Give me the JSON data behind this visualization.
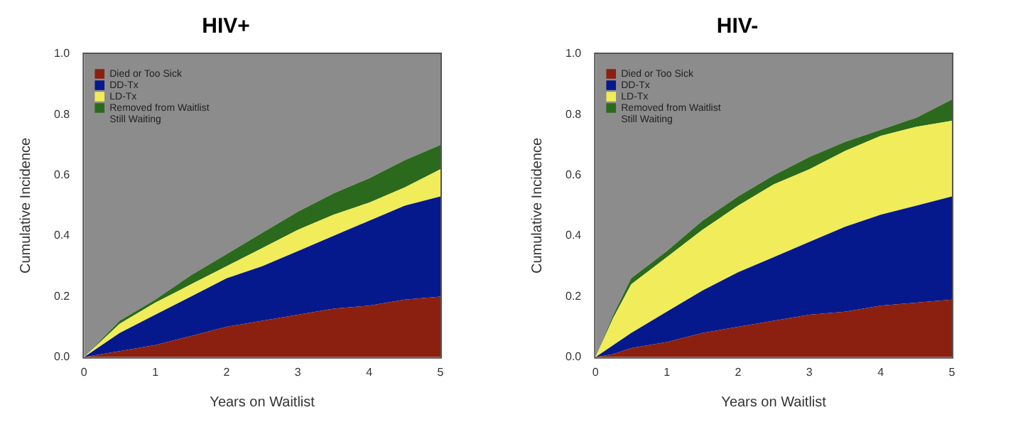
{
  "chart_data": [
    {
      "type": "area",
      "title": "HIV+",
      "xlabel": "Years on Waitlist",
      "ylabel": "Cumulative Incidence",
      "stacked": true,
      "legend": "top left",
      "x": [
        0,
        0.5,
        1,
        1.5,
        2,
        2.5,
        3,
        3.5,
        4,
        4.5,
        5
      ],
      "series": [
        {
          "name": "Died or Too Sick",
          "color": "#8b2010",
          "values": [
            0,
            0.02,
            0.04,
            0.07,
            0.1,
            0.12,
            0.14,
            0.16,
            0.17,
            0.19,
            0.2
          ]
        },
        {
          "name": "DD-Tx",
          "color": "#06198c",
          "values": [
            0,
            0.06,
            0.1,
            0.13,
            0.16,
            0.18,
            0.21,
            0.24,
            0.28,
            0.31,
            0.33
          ]
        },
        {
          "name": "LD-Tx",
          "color": "#f0ec5a",
          "values": [
            0,
            0.03,
            0.04,
            0.04,
            0.04,
            0.06,
            0.07,
            0.07,
            0.06,
            0.06,
            0.09
          ]
        },
        {
          "name": "Removed from Waitlist",
          "color": "#2b6a1c",
          "values": [
            0,
            0.01,
            0.01,
            0.03,
            0.04,
            0.05,
            0.06,
            0.07,
            0.08,
            0.09,
            0.08
          ]
        },
        {
          "name": "Still Waiting",
          "color": "#8c8c8c",
          "values": [
            1,
            0.88,
            0.81,
            0.73,
            0.66,
            0.59,
            0.52,
            0.46,
            0.41,
            0.35,
            0.3
          ]
        }
      ],
      "xlim": [
        0,
        5
      ],
      "xticks": [
        0,
        1,
        2,
        3,
        4,
        5
      ],
      "ylim": [
        0,
        1
      ],
      "yticks": [
        {
          "value": 0,
          "label": "0.0"
        },
        {
          "value": 0.2,
          "label": "0.2"
        },
        {
          "value": 0.4,
          "label": "0.4"
        },
        {
          "value": 0.6,
          "label": "0.6"
        },
        {
          "value": 0.8,
          "label": "0.8"
        },
        {
          "value": 1,
          "label": "1.0"
        }
      ]
    },
    {
      "type": "area",
      "title": "HIV-",
      "xlabel": "Years on Waitlist",
      "ylabel": "Cumulative Incidence",
      "stacked": true,
      "legend": "top left",
      "x": [
        0,
        0.25,
        0.5,
        1,
        1.5,
        2,
        2.5,
        3,
        3.5,
        4,
        4.5,
        5
      ],
      "series": [
        {
          "name": "Died or Too Sick",
          "color": "#8b2010",
          "values": [
            0,
            0.01,
            0.03,
            0.05,
            0.08,
            0.1,
            0.12,
            0.14,
            0.15,
            0.17,
            0.18,
            0.19
          ]
        },
        {
          "name": "DD-Tx",
          "color": "#06198c",
          "values": [
            0,
            0.03,
            0.05,
            0.1,
            0.14,
            0.18,
            0.21,
            0.24,
            0.28,
            0.3,
            0.32,
            0.34
          ]
        },
        {
          "name": "LD-Tx",
          "color": "#f0ec5a",
          "values": [
            0,
            0.09,
            0.16,
            0.18,
            0.2,
            0.22,
            0.24,
            0.24,
            0.25,
            0.26,
            0.26,
            0.25
          ]
        },
        {
          "name": "Removed from Waitlist",
          "color": "#2b6a1c",
          "values": [
            0,
            0.01,
            0.02,
            0.02,
            0.03,
            0.03,
            0.03,
            0.04,
            0.03,
            0.02,
            0.03,
            0.07
          ]
        },
        {
          "name": "Still Waiting",
          "color": "#8c8c8c",
          "values": [
            1,
            0.86,
            0.74,
            0.65,
            0.55,
            0.47,
            0.4,
            0.34,
            0.29,
            0.25,
            0.21,
            0.15
          ]
        }
      ],
      "xlim": [
        0,
        5
      ],
      "xticks": [
        0,
        1,
        2,
        3,
        4,
        5
      ],
      "ylim": [
        0,
        1
      ],
      "yticks": [
        {
          "value": 0,
          "label": "0.0"
        },
        {
          "value": 0.2,
          "label": "0.2"
        },
        {
          "value": 0.4,
          "label": "0.4"
        },
        {
          "value": 0.6,
          "label": "0.6"
        },
        {
          "value": 0.8,
          "label": "0.8"
        },
        {
          "value": 1,
          "label": "1.0"
        }
      ]
    }
  ]
}
